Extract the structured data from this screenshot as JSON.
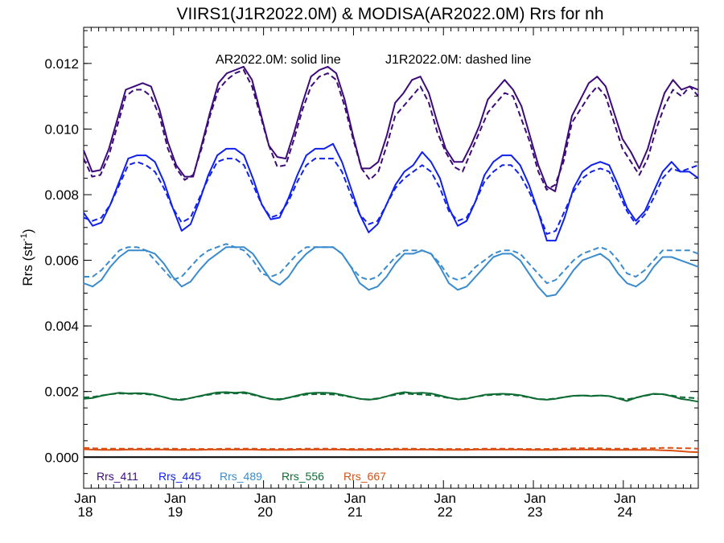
{
  "chart_data": {
    "type": "line",
    "title": "VIIRS1(J1R2022.0M) & MODISA(AR2022.0M)  Rrs for nh",
    "ylabel": "Rrs (str",
    "ylabel_sup": "-1",
    "ylabel_close": ")",
    "annotation_solid": "AR2022.0M: solid line",
    "annotation_dashed": "J1R2022.0M: dashed line",
    "x_unit": "fractional year",
    "xlim": [
      2018.0,
      2024.833
    ],
    "ylim": [
      -0.00095,
      0.0131
    ],
    "yticks": [
      0.0,
      0.002,
      0.004,
      0.006,
      0.008,
      0.01,
      0.012
    ],
    "ytick_labels": [
      "0.000",
      "0.002",
      "0.004",
      "0.006",
      "0.008",
      "0.010",
      "0.012"
    ],
    "xticks": [
      {
        "x": 2018,
        "month": "Jan",
        "year": "18"
      },
      {
        "x": 2019,
        "month": "Jan",
        "year": "19"
      },
      {
        "x": 2020,
        "month": "Jan",
        "year": "20"
      },
      {
        "x": 2021,
        "month": "Jan",
        "year": "21"
      },
      {
        "x": 2022,
        "month": "Jan",
        "year": "22"
      },
      {
        "x": 2023,
        "month": "Jan",
        "year": "23"
      },
      {
        "x": 2024,
        "month": "Jan",
        "year": "24"
      }
    ],
    "zero_line": 0.0,
    "series": [
      {
        "name": "Rrs_411",
        "color": "#3d0a7a",
        "label_color": "#3d0a7a",
        "modis": [
          0.00935,
          0.0087,
          0.00875,
          0.0094,
          0.0103,
          0.0112,
          0.0113,
          0.0114,
          0.0113,
          0.0106,
          0.0096,
          0.0089,
          0.00855,
          0.00855,
          0.0095,
          0.0105,
          0.0114,
          0.0117,
          0.0118,
          0.0119,
          0.0115,
          0.0105,
          0.0095,
          0.00915,
          0.0091,
          0.0099,
          0.0108,
          0.0116,
          0.0118,
          0.0119,
          0.0117,
          0.0109,
          0.0098,
          0.0088,
          0.0088,
          0.009,
          0.0098,
          0.0108,
          0.0111,
          0.0115,
          0.0116,
          0.0111,
          0.0102,
          0.0094,
          0.009,
          0.009,
          0.0095,
          0.0101,
          0.0109,
          0.0112,
          0.0115,
          0.0112,
          0.0107,
          0.0098,
          0.0089,
          0.00825,
          0.0081,
          0.0092,
          0.0104,
          0.0109,
          0.0114,
          0.0116,
          0.0113,
          0.0105,
          0.0097,
          0.0093,
          0.0088,
          0.0094,
          0.0103,
          0.0111,
          0.0115,
          0.0112,
          0.0113,
          0.0112
        ],
        "viirs": [
          0.0091,
          0.00855,
          0.0086,
          0.0092,
          0.0101,
          0.011,
          0.0112,
          0.0112,
          0.011,
          0.0104,
          0.0094,
          0.0088,
          0.00845,
          0.0086,
          0.0094,
          0.0104,
          0.0112,
          0.0115,
          0.0117,
          0.0118,
          0.0113,
          0.0104,
          0.0095,
          0.00885,
          0.0089,
          0.0097,
          0.0106,
          0.0113,
          0.0116,
          0.0117,
          0.0115,
          0.0107,
          0.0097,
          0.0088,
          0.00845,
          0.0087,
          0.0095,
          0.0104,
          0.0107,
          0.011,
          0.0113,
          0.0108,
          0.0099,
          0.0093,
          0.00885,
          0.0087,
          0.0093,
          0.0099,
          0.0105,
          0.0108,
          0.0111,
          0.011,
          0.0103,
          0.0096,
          0.0087,
          0.00815,
          0.0083,
          0.009,
          0.0102,
          0.0106,
          0.011,
          0.0113,
          0.011,
          0.0102,
          0.0094,
          0.009,
          0.0086,
          0.0091,
          0.01,
          0.0107,
          0.0112,
          0.011,
          0.0113,
          0.011
        ]
      },
      {
        "name": "Rrs_445",
        "color": "#1020ee",
        "label_color": "#1020ee",
        "modis": [
          0.00745,
          0.00705,
          0.00715,
          0.0077,
          0.0084,
          0.0091,
          0.0092,
          0.0092,
          0.009,
          0.0084,
          0.0076,
          0.0069,
          0.0071,
          0.0078,
          0.0086,
          0.0092,
          0.0094,
          0.0094,
          0.0092,
          0.0085,
          0.0077,
          0.00725,
          0.0073,
          0.0079,
          0.0086,
          0.0092,
          0.0094,
          0.0094,
          0.00955,
          0.009,
          0.0082,
          0.0074,
          0.00685,
          0.0071,
          0.0077,
          0.0083,
          0.0087,
          0.0089,
          0.0093,
          0.009,
          0.0085,
          0.0076,
          0.00705,
          0.0072,
          0.0078,
          0.0086,
          0.009,
          0.0092,
          0.0092,
          0.0089,
          0.0083,
          0.0075,
          0.0066,
          0.0066,
          0.0073,
          0.0082,
          0.0087,
          0.0089,
          0.009,
          0.0089,
          0.0083,
          0.0076,
          0.0072,
          0.0075,
          0.0081,
          0.0087,
          0.009,
          0.0087,
          0.0087,
          0.0085
        ],
        "viirs": [
          0.0073,
          0.0072,
          0.0073,
          0.0077,
          0.0083,
          0.0089,
          0.009,
          0.0089,
          0.0087,
          0.0082,
          0.0076,
          0.00715,
          0.0073,
          0.0079,
          0.0085,
          0.009,
          0.0091,
          0.0091,
          0.0089,
          0.0083,
          0.0077,
          0.0073,
          0.0074,
          0.0078,
          0.0084,
          0.0089,
          0.0091,
          0.0091,
          0.0091,
          0.0087,
          0.008,
          0.0074,
          0.0071,
          0.0072,
          0.0077,
          0.0082,
          0.0085,
          0.0087,
          0.0089,
          0.0087,
          0.0082,
          0.0075,
          0.0072,
          0.0073,
          0.0078,
          0.0084,
          0.0087,
          0.0089,
          0.0089,
          0.0086,
          0.0081,
          0.0075,
          0.0068,
          0.0069,
          0.0075,
          0.0081,
          0.0085,
          0.0087,
          0.0088,
          0.0087,
          0.0081,
          0.0075,
          0.0071,
          0.0074,
          0.0079,
          0.0085,
          0.0088,
          0.0087,
          0.0088,
          0.0089
        ]
      },
      {
        "name": "Rrs_489",
        "color": "#3a8bcd",
        "label_color": "#3a8bcd",
        "modis": [
          0.0053,
          0.0052,
          0.0054,
          0.0058,
          0.0061,
          0.0063,
          0.0063,
          0.0063,
          0.0062,
          0.0059,
          0.0055,
          0.0052,
          0.00535,
          0.0057,
          0.006,
          0.0062,
          0.0064,
          0.0064,
          0.0064,
          0.0062,
          0.0058,
          0.0054,
          0.00525,
          0.0055,
          0.0059,
          0.0062,
          0.0064,
          0.0064,
          0.0064,
          0.0062,
          0.0058,
          0.0053,
          0.0051,
          0.0052,
          0.0055,
          0.0059,
          0.0062,
          0.0062,
          0.0063,
          0.0062,
          0.0058,
          0.0053,
          0.0051,
          0.0052,
          0.0055,
          0.0058,
          0.0061,
          0.0062,
          0.0062,
          0.006,
          0.0056,
          0.0052,
          0.0049,
          0.00495,
          0.0053,
          0.0057,
          0.006,
          0.0061,
          0.0062,
          0.006,
          0.0056,
          0.0053,
          0.0052,
          0.0054,
          0.0058,
          0.0061,
          0.0061,
          0.006,
          0.0059,
          0.0058
        ],
        "viirs": [
          0.0055,
          0.0055,
          0.0057,
          0.006,
          0.0063,
          0.0064,
          0.0064,
          0.0063,
          0.006,
          0.0057,
          0.0054,
          0.0055,
          0.0058,
          0.0061,
          0.0063,
          0.0064,
          0.0065,
          0.0064,
          0.0063,
          0.006,
          0.0056,
          0.0055,
          0.0056,
          0.0059,
          0.0062,
          0.0064,
          0.0064,
          0.0064,
          0.0064,
          0.0062,
          0.0058,
          0.0055,
          0.0054,
          0.0055,
          0.0058,
          0.0061,
          0.0063,
          0.0063,
          0.0063,
          0.0062,
          0.0059,
          0.0055,
          0.0054,
          0.0055,
          0.0058,
          0.006,
          0.0062,
          0.0063,
          0.0063,
          0.0062,
          0.0059,
          0.0056,
          0.0053,
          0.0054,
          0.0057,
          0.006,
          0.0062,
          0.0063,
          0.0064,
          0.0063,
          0.006,
          0.0056,
          0.0055,
          0.0057,
          0.006,
          0.0063,
          0.0063,
          0.0063,
          0.0063,
          0.0062
        ]
      },
      {
        "name": "Rrs_556",
        "color": "#0d6b33",
        "label_color": "#0d6b33",
        "modis": [
          0.00178,
          0.0018,
          0.00187,
          0.00192,
          0.00196,
          0.00194,
          0.00195,
          0.00194,
          0.0019,
          0.00183,
          0.00176,
          0.00174,
          0.0018,
          0.00186,
          0.00192,
          0.00197,
          0.00198,
          0.00196,
          0.00198,
          0.00192,
          0.00184,
          0.00177,
          0.00175,
          0.00181,
          0.00188,
          0.00194,
          0.00196,
          0.00196,
          0.00195,
          0.0019,
          0.00184,
          0.00178,
          0.00175,
          0.00178,
          0.00185,
          0.00193,
          0.00198,
          0.00195,
          0.00196,
          0.00194,
          0.00188,
          0.00181,
          0.00176,
          0.00178,
          0.00184,
          0.0019,
          0.00192,
          0.00193,
          0.00192,
          0.00189,
          0.00183,
          0.00177,
          0.00175,
          0.00178,
          0.00183,
          0.00187,
          0.00188,
          0.00186,
          0.00188,
          0.00186,
          0.00179,
          0.00171,
          0.00181,
          0.00188,
          0.00193,
          0.00192,
          0.00186,
          0.00178,
          0.00174,
          0.00169
        ],
        "viirs": [
          0.00182,
          0.00183,
          0.00188,
          0.00192,
          0.00194,
          0.00193,
          0.00193,
          0.00192,
          0.00189,
          0.00183,
          0.00177,
          0.00176,
          0.0018,
          0.00185,
          0.0019,
          0.00193,
          0.00195,
          0.00194,
          0.00195,
          0.0019,
          0.00183,
          0.00178,
          0.00177,
          0.00181,
          0.00186,
          0.00191,
          0.00192,
          0.00192,
          0.00191,
          0.00188,
          0.00183,
          0.00178,
          0.00176,
          0.00179,
          0.00185,
          0.0019,
          0.00194,
          0.00192,
          0.00191,
          0.00189,
          0.00185,
          0.0018,
          0.00177,
          0.00179,
          0.00184,
          0.00188,
          0.0019,
          0.00191,
          0.0019,
          0.00187,
          0.00182,
          0.00177,
          0.00176,
          0.00179,
          0.00183,
          0.00187,
          0.00188,
          0.00187,
          0.00188,
          0.00186,
          0.0018,
          0.00176,
          0.00181,
          0.00187,
          0.00192,
          0.00192,
          0.00188,
          0.00183,
          0.00181,
          0.00179
        ]
      },
      {
        "name": "Rrs_667",
        "color": "#d94f14",
        "label_color": "#d94f14",
        "modis": [
          0.00024,
          0.00023,
          0.00022,
          0.00022,
          0.00022,
          0.00023,
          0.00023,
          0.00023,
          0.00023,
          0.00023,
          0.00022,
          0.00022,
          0.00022,
          0.00022,
          0.00023,
          0.00023,
          0.00023,
          0.00023,
          0.00023,
          0.00023,
          0.00022,
          0.00022,
          0.00022,
          0.00022,
          0.00023,
          0.00023,
          0.00023,
          0.00023,
          0.00023,
          0.00023,
          0.00022,
          0.00022,
          0.00022,
          0.00022,
          0.00023,
          0.00023,
          0.00023,
          0.00023,
          0.00023,
          0.00023,
          0.00022,
          0.00022,
          0.00022,
          0.00022,
          0.00023,
          0.00023,
          0.00023,
          0.00023,
          0.00023,
          0.00023,
          0.00022,
          0.00022,
          0.00022,
          0.00022,
          0.00023,
          0.00023,
          0.00023,
          0.00023,
          0.00023,
          0.00022,
          0.00022,
          0.00022,
          0.00022,
          0.00022,
          0.00022,
          0.00021,
          0.0002,
          0.00018,
          0.00016,
          0.00015
        ],
        "viirs": [
          0.00028,
          0.00027,
          0.00026,
          0.00026,
          0.00026,
          0.00026,
          0.00026,
          0.00026,
          0.00026,
          0.00026,
          0.00026,
          0.00025,
          0.00025,
          0.00025,
          0.00025,
          0.00025,
          0.00026,
          0.00026,
          0.00026,
          0.00026,
          0.00025,
          0.00025,
          0.00025,
          0.00025,
          0.00025,
          0.00026,
          0.00026,
          0.00026,
          0.00026,
          0.00025,
          0.00025,
          0.00025,
          0.00025,
          0.00025,
          0.00025,
          0.00026,
          0.00026,
          0.00026,
          0.00025,
          0.00025,
          0.00025,
          0.00025,
          0.00025,
          0.00025,
          0.00025,
          0.00026,
          0.00026,
          0.00026,
          0.00026,
          0.00025,
          0.00025,
          0.00025,
          0.00025,
          0.00026,
          0.00026,
          0.00027,
          0.00027,
          0.00027,
          0.00027,
          0.00026,
          0.00026,
          0.00026,
          0.00026,
          0.00027,
          0.00027,
          0.00028,
          0.00028,
          0.00027,
          0.00027,
          0.00026
        ]
      }
    ]
  }
}
